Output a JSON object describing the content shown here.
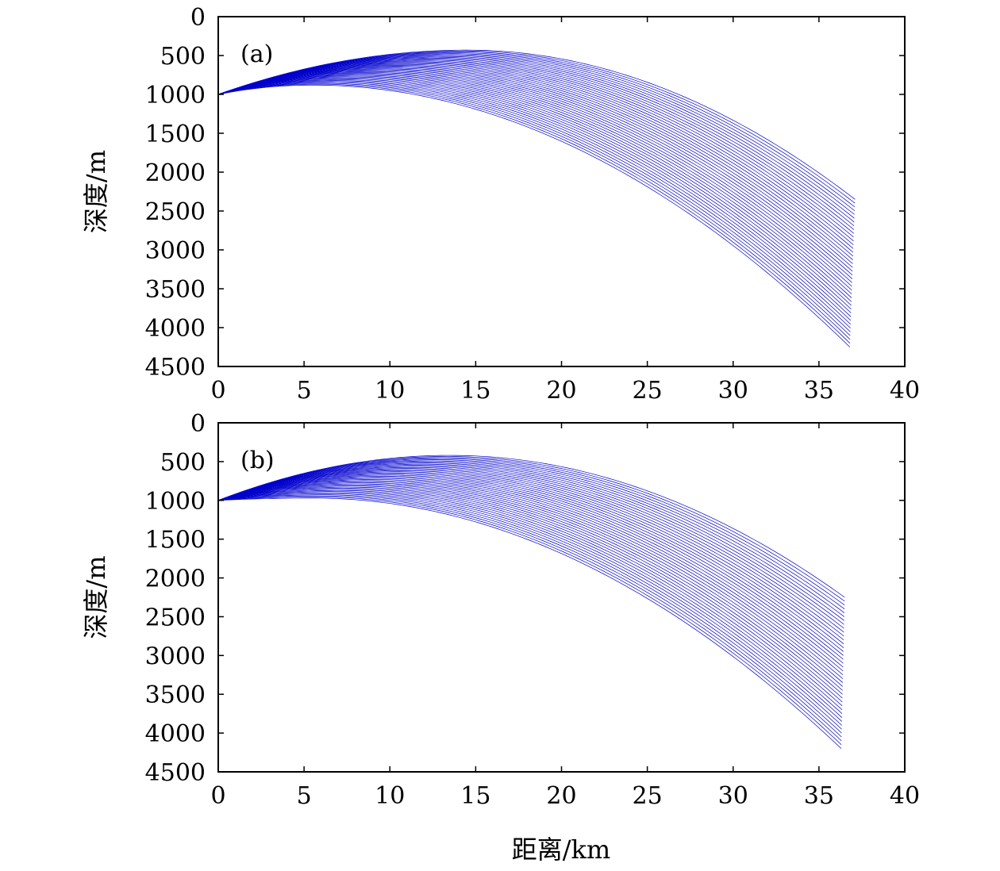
{
  "chart_data": [
    {
      "type": "line",
      "panel_label": "(a)",
      "xlabel": "",
      "ylabel": "深度/m",
      "xlim": [
        0,
        40
      ],
      "ylim": [
        0,
        4500
      ],
      "y_inverted": true,
      "x_ticks": [
        "0",
        "5",
        "10",
        "15",
        "20",
        "25",
        "30",
        "35",
        "40"
      ],
      "y_ticks": [
        "0",
        "500",
        "1000",
        "1500",
        "2000",
        "2500",
        "3000",
        "3500",
        "4000",
        "4500"
      ],
      "line_color": "#0000cc",
      "ray_fan": {
        "count": 40,
        "source": {
          "x": 0,
          "y": 1000
        },
        "turning_depth_range": [
          430,
          880
        ],
        "turning_range_km": [
          5.5,
          14.5
        ],
        "end_range_km": [
          36.8,
          37.1
        ],
        "end_depth_range": [
          2350,
          4250
        ]
      }
    },
    {
      "type": "line",
      "panel_label": "(b)",
      "xlabel": "距离/km",
      "ylabel": "深度/m",
      "xlim": [
        0,
        40
      ],
      "ylim": [
        0,
        4500
      ],
      "y_inverted": true,
      "x_ticks": [
        "0",
        "5",
        "10",
        "15",
        "20",
        "25",
        "30",
        "35",
        "40"
      ],
      "y_ticks": [
        "0",
        "500",
        "1000",
        "1500",
        "2000",
        "2500",
        "3000",
        "3500",
        "4000",
        "4500"
      ],
      "line_color": "#0000cc",
      "ray_fan": {
        "count": 40,
        "source": {
          "x": 0,
          "y": 1000
        },
        "turning_depth_range": [
          420,
          970
        ],
        "turning_range_km": [
          5.5,
          13.5
        ],
        "end_range_km": [
          36.3,
          36.5
        ],
        "end_depth_range": [
          2250,
          4200
        ]
      }
    }
  ]
}
